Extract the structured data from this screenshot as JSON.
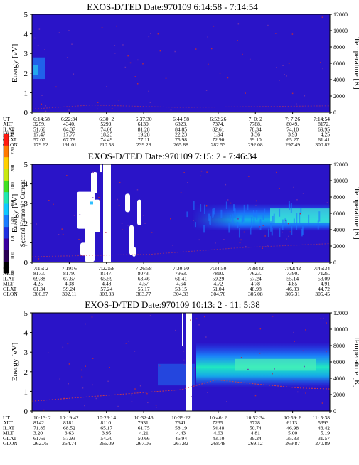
{
  "chart_data": [
    {
      "type": "heatmap",
      "title": "EXOS-D/TED   Date:970109   6:14:58 - 7:14:54",
      "ylabel": "Energy [eV]",
      "y2label": "Temperature [K]",
      "ylim": [
        0,
        5
      ],
      "y_ticks": [
        "0",
        "1",
        "2",
        "3",
        "4",
        "5"
      ],
      "y2lim": [
        0,
        12000
      ],
      "y2_ticks": [
        "0",
        "2000",
        "4000",
        "6000",
        "8000",
        "10000",
        "12000"
      ],
      "row_labels": [
        "UT",
        "ALT",
        "ILAT",
        "MLT",
        "GLAT",
        "GLON"
      ],
      "columns": [
        [
          "6:14:58",
          "3259.",
          "51.66",
          "17.47",
          "57.07",
          "179.62"
        ],
        [
          "6:22:34",
          "4340.",
          "64.37",
          "17.77",
          "67.78",
          "191.01"
        ],
        [
          "6:30: 2",
          "5299.",
          "74.06",
          "18.25",
          "74.49",
          "210.58"
        ],
        [
          "6:37:30",
          "6130.",
          "81.28",
          "19.28",
          "77.11",
          "239.28"
        ],
        [
          "6:44:58",
          "6823.",
          "84.85",
          "22.23",
          "75.98",
          "265.88"
        ],
        [
          "6:52:26",
          "7374.",
          "82.61",
          "1.94",
          "72.90",
          "282.53"
        ],
        [
          "7: 0: 2",
          "7788.",
          "78.34",
          "3.36",
          "69.10",
          "292.08"
        ],
        [
          "7: 7:26",
          "8049.",
          "74.10",
          "3.93",
          "65.27",
          "297.49"
        ],
        [
          "7:14:54",
          "8172.",
          "69.95",
          "4.25",
          "61.41",
          "300.82"
        ]
      ]
    },
    {
      "type": "heatmap",
      "title": "EXOS-D/TED   Date:970109   7:15: 2 - 7:46:34",
      "ylabel": "Energy [eV]",
      "y2label": "Temperature [K]",
      "ylim": [
        0,
        5
      ],
      "y_ticks": [
        "0",
        "1",
        "2",
        "3",
        "4",
        "5"
      ],
      "y2lim": [
        0,
        12000
      ],
      "y2_ticks": [
        "0",
        "2000",
        "4000",
        "6000",
        "8000",
        "10000",
        "12000"
      ],
      "row_labels": [
        "UT",
        "ALT",
        "ILAT",
        "MLT",
        "GLAT",
        "GLON"
      ],
      "columns": [
        [
          "7:15: 2",
          "8173.",
          "69.88",
          "4.25",
          "61.34",
          "300.87"
        ],
        [
          "7:19: 6",
          "8179.",
          "67.67",
          "4.38",
          "59.24",
          "302.11"
        ],
        [
          "7:22:58",
          "8147.",
          "65.59",
          "4.48",
          "57.24",
          "303.03"
        ],
        [
          "7:26:58",
          "8073.",
          "63.46",
          "4.57",
          "55.17",
          "303.77"
        ],
        [
          "7:30:50",
          "7963.",
          "61.41",
          "4.64",
          "53.15",
          "304.33"
        ],
        [
          "7:34:50",
          "7810.",
          "59.29",
          "4.72",
          "51.04",
          "304.76"
        ],
        [
          "7:38:42",
          "7623.",
          "57.24",
          "4.78",
          "48.98",
          "305.08"
        ],
        [
          "7:42:42",
          "7390.",
          "55.14",
          "4.85",
          "46.83",
          "305.31"
        ],
        [
          "7:46:34",
          "7125.",
          "53.09",
          "4.91",
          "44.72",
          "305.45"
        ]
      ]
    },
    {
      "type": "heatmap",
      "title": "EXOS-D/TED   Date:970109   10:13: 2 - 11: 5:38",
      "ylabel": "Energy [eV]",
      "y2label": "Temperature [K]",
      "ylim": [
        0,
        5
      ],
      "y_ticks": [
        "0",
        "1",
        "2",
        "3",
        "4",
        "5"
      ],
      "y2lim": [
        0,
        12000
      ],
      "y2_ticks": [
        "0",
        "2000",
        "4000",
        "6000",
        "8000",
        "10000",
        "12000"
      ],
      "row_labels": [
        "UT",
        "ALT",
        "ILAT",
        "MLT",
        "GLAT",
        "GLON"
      ],
      "columns": [
        [
          "10:13: 2",
          "8142.",
          "71.85",
          "3.20",
          "61.69",
          "262.75"
        ],
        [
          "10:19:42",
          "8181.",
          "68.52",
          "3.63",
          "57.93",
          "264.74"
        ],
        [
          "10:26:14",
          "8110.",
          "65.17",
          "3.95",
          "54.30",
          "266.09"
        ],
        [
          "10:32:46",
          "7931.",
          "61.75",
          "4.21",
          "50.66",
          "267.06"
        ],
        [
          "10:39:22",
          "7641.",
          "58.19",
          "4.43",
          "46.94",
          "267.82"
        ],
        [
          "10:46: 2",
          "7235.",
          "54.48",
          "4.63",
          "43.10",
          "268.48"
        ],
        [
          "10:52:34",
          "6728.",
          "50.74",
          "4.81",
          "39.24",
          "269.12"
        ],
        [
          "10:59: 6",
          "6113.",
          "46.98",
          "5.00",
          "35.33",
          "269.87"
        ],
        [
          "11: 5:38",
          "5393.",
          "43.42",
          "5.19",
          "31.57",
          "270.89"
        ]
      ]
    },
    {
      "type": "colorbar",
      "label": "Second Harmonic Current",
      "ticks": [
        "80",
        "100",
        "120",
        "140",
        "160",
        "180",
        "200",
        "220",
        "240"
      ]
    }
  ]
}
